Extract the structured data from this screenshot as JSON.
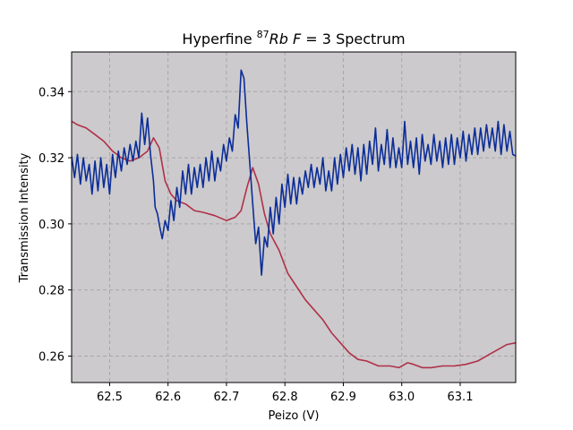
{
  "chart_data": {
    "type": "line",
    "title_parts": {
      "prefix": "Hyperfine ",
      "sup": "87",
      "italic_a": "Rb",
      "italic_b": "F",
      "suffix": " = 3 Spectrum"
    },
    "xlabel": "Peizo (V)",
    "ylabel": "Transmission Intensity",
    "xlim": [
      62.435,
      63.195
    ],
    "ylim": [
      0.252,
      0.352
    ],
    "xticks": [
      "62.5",
      "62.6",
      "62.7",
      "62.8",
      "62.9",
      "63.0",
      "63.1"
    ],
    "yticks": [
      "0.26",
      "0.28",
      "0.30",
      "0.32",
      "0.34"
    ],
    "grid": true,
    "background": "#cccacc",
    "series": [
      {
        "color": "#b03048",
        "points": [
          [
            62.435,
            0.331
          ],
          [
            62.445,
            0.33
          ],
          [
            62.46,
            0.329
          ],
          [
            62.475,
            0.327
          ],
          [
            62.49,
            0.325
          ],
          [
            62.505,
            0.322
          ],
          [
            62.52,
            0.32
          ],
          [
            62.535,
            0.319
          ],
          [
            62.55,
            0.32
          ],
          [
            62.565,
            0.322
          ],
          [
            62.575,
            0.326
          ],
          [
            62.585,
            0.323
          ],
          [
            62.595,
            0.313
          ],
          [
            62.605,
            0.309
          ],
          [
            62.615,
            0.307
          ],
          [
            62.63,
            0.306
          ],
          [
            62.645,
            0.304
          ],
          [
            62.66,
            0.3035
          ],
          [
            62.68,
            0.3025
          ],
          [
            62.7,
            0.301
          ],
          [
            62.715,
            0.302
          ],
          [
            62.725,
            0.304
          ],
          [
            62.735,
            0.311
          ],
          [
            62.745,
            0.317
          ],
          [
            62.755,
            0.312
          ],
          [
            62.765,
            0.303
          ],
          [
            62.775,
            0.297
          ],
          [
            62.79,
            0.292
          ],
          [
            62.805,
            0.285
          ],
          [
            62.82,
            0.281
          ],
          [
            62.835,
            0.277
          ],
          [
            62.85,
            0.274
          ],
          [
            62.865,
            0.271
          ],
          [
            62.88,
            0.267
          ],
          [
            62.895,
            0.264
          ],
          [
            62.91,
            0.261
          ],
          [
            62.925,
            0.259
          ],
          [
            62.94,
            0.2585
          ],
          [
            62.96,
            0.257
          ],
          [
            62.98,
            0.257
          ],
          [
            62.995,
            0.2565
          ],
          [
            63.01,
            0.258
          ],
          [
            63.02,
            0.2575
          ],
          [
            63.035,
            0.2565
          ],
          [
            63.05,
            0.2565
          ],
          [
            63.07,
            0.257
          ],
          [
            63.09,
            0.257
          ],
          [
            63.11,
            0.2575
          ],
          [
            63.13,
            0.2585
          ],
          [
            63.15,
            0.2605
          ],
          [
            63.165,
            0.262
          ],
          [
            63.18,
            0.2635
          ],
          [
            63.195,
            0.264
          ]
        ]
      },
      {
        "color": "#0b2d98",
        "points": [
          [
            62.435,
            0.3205
          ],
          [
            62.44,
            0.314
          ],
          [
            62.445,
            0.321
          ],
          [
            62.45,
            0.312
          ],
          [
            62.455,
            0.32
          ],
          [
            62.46,
            0.313
          ],
          [
            62.465,
            0.318
          ],
          [
            62.47,
            0.309
          ],
          [
            62.475,
            0.319
          ],
          [
            62.48,
            0.31
          ],
          [
            62.485,
            0.32
          ],
          [
            62.49,
            0.311
          ],
          [
            62.495,
            0.318
          ],
          [
            62.5,
            0.309
          ],
          [
            62.505,
            0.321
          ],
          [
            62.51,
            0.314
          ],
          [
            62.515,
            0.322
          ],
          [
            62.52,
            0.316
          ],
          [
            62.525,
            0.323
          ],
          [
            62.53,
            0.318
          ],
          [
            62.535,
            0.324
          ],
          [
            62.54,
            0.319
          ],
          [
            62.545,
            0.325
          ],
          [
            62.55,
            0.32
          ],
          [
            62.555,
            0.3335
          ],
          [
            62.56,
            0.324
          ],
          [
            62.565,
            0.332
          ],
          [
            62.57,
            0.321
          ],
          [
            62.575,
            0.313
          ],
          [
            62.578,
            0.305
          ],
          [
            62.582,
            0.303
          ],
          [
            62.586,
            0.299
          ],
          [
            62.59,
            0.2955
          ],
          [
            62.595,
            0.301
          ],
          [
            62.6,
            0.298
          ],
          [
            62.605,
            0.307
          ],
          [
            62.61,
            0.301
          ],
          [
            62.615,
            0.311
          ],
          [
            62.62,
            0.305
          ],
          [
            62.625,
            0.316
          ],
          [
            62.63,
            0.309
          ],
          [
            62.635,
            0.318
          ],
          [
            62.64,
            0.309
          ],
          [
            62.645,
            0.317
          ],
          [
            62.65,
            0.311
          ],
          [
            62.655,
            0.318
          ],
          [
            62.66,
            0.311
          ],
          [
            62.665,
            0.32
          ],
          [
            62.67,
            0.313
          ],
          [
            62.675,
            0.322
          ],
          [
            62.68,
            0.313
          ],
          [
            62.685,
            0.32
          ],
          [
            62.69,
            0.316
          ],
          [
            62.695,
            0.324
          ],
          [
            62.7,
            0.319
          ],
          [
            62.705,
            0.326
          ],
          [
            62.71,
            0.322
          ],
          [
            62.715,
            0.333
          ],
          [
            62.72,
            0.329
          ],
          [
            62.725,
            0.3465
          ],
          [
            62.73,
            0.344
          ],
          [
            62.735,
            0.33
          ],
          [
            62.74,
            0.318
          ],
          [
            62.745,
            0.306
          ],
          [
            62.75,
            0.294
          ],
          [
            62.755,
            0.299
          ],
          [
            62.76,
            0.2845
          ],
          [
            62.765,
            0.296
          ],
          [
            62.77,
            0.293
          ],
          [
            62.775,
            0.305
          ],
          [
            62.78,
            0.297
          ],
          [
            62.785,
            0.308
          ],
          [
            62.79,
            0.3
          ],
          [
            62.795,
            0.312
          ],
          [
            62.8,
            0.305
          ],
          [
            62.805,
            0.315
          ],
          [
            62.81,
            0.306
          ],
          [
            62.815,
            0.314
          ],
          [
            62.82,
            0.306
          ],
          [
            62.825,
            0.314
          ],
          [
            62.83,
            0.309
          ],
          [
            62.835,
            0.316
          ],
          [
            62.84,
            0.311
          ],
          [
            62.845,
            0.318
          ],
          [
            62.85,
            0.311
          ],
          [
            62.855,
            0.317
          ],
          [
            62.86,
            0.312
          ],
          [
            62.865,
            0.32
          ],
          [
            62.87,
            0.31
          ],
          [
            62.875,
            0.316
          ],
          [
            62.88,
            0.31
          ],
          [
            62.885,
            0.32
          ],
          [
            62.89,
            0.312
          ],
          [
            62.895,
            0.321
          ],
          [
            62.9,
            0.314
          ],
          [
            62.905,
            0.323
          ],
          [
            62.91,
            0.316
          ],
          [
            62.915,
            0.324
          ],
          [
            62.92,
            0.315
          ],
          [
            62.925,
            0.323
          ],
          [
            62.93,
            0.313
          ],
          [
            62.935,
            0.324
          ],
          [
            62.94,
            0.315
          ],
          [
            62.945,
            0.325
          ],
          [
            62.95,
            0.318
          ],
          [
            62.955,
            0.329
          ],
          [
            62.96,
            0.316
          ],
          [
            62.965,
            0.324
          ],
          [
            62.97,
            0.318
          ],
          [
            62.975,
            0.3285
          ],
          [
            62.98,
            0.317
          ],
          [
            62.985,
            0.326
          ],
          [
            62.99,
            0.317
          ],
          [
            62.995,
            0.323
          ],
          [
            63.0,
            0.317
          ],
          [
            63.005,
            0.331
          ],
          [
            63.01,
            0.318
          ],
          [
            63.015,
            0.325
          ],
          [
            63.02,
            0.317
          ],
          [
            63.025,
            0.326
          ],
          [
            63.03,
            0.315
          ],
          [
            63.035,
            0.327
          ],
          [
            63.04,
            0.319
          ],
          [
            63.045,
            0.324
          ],
          [
            63.05,
            0.318
          ],
          [
            63.055,
            0.327
          ],
          [
            63.06,
            0.319
          ],
          [
            63.065,
            0.325
          ],
          [
            63.07,
            0.317
          ],
          [
            63.075,
            0.326
          ],
          [
            63.08,
            0.318
          ],
          [
            63.085,
            0.327
          ],
          [
            63.09,
            0.318
          ],
          [
            63.095,
            0.326
          ],
          [
            63.1,
            0.32
          ],
          [
            63.105,
            0.328
          ],
          [
            63.11,
            0.319
          ],
          [
            63.115,
            0.327
          ],
          [
            63.12,
            0.321
          ],
          [
            63.125,
            0.329
          ],
          [
            63.13,
            0.321
          ],
          [
            63.135,
            0.329
          ],
          [
            63.14,
            0.322
          ],
          [
            63.145,
            0.33
          ],
          [
            63.15,
            0.323
          ],
          [
            63.155,
            0.329
          ],
          [
            63.16,
            0.322
          ],
          [
            63.165,
            0.331
          ],
          [
            63.17,
            0.321
          ],
          [
            63.175,
            0.33
          ],
          [
            63.18,
            0.322
          ],
          [
            63.185,
            0.328
          ],
          [
            63.19,
            0.321
          ],
          [
            63.195,
            0.3205
          ]
        ]
      }
    ]
  }
}
